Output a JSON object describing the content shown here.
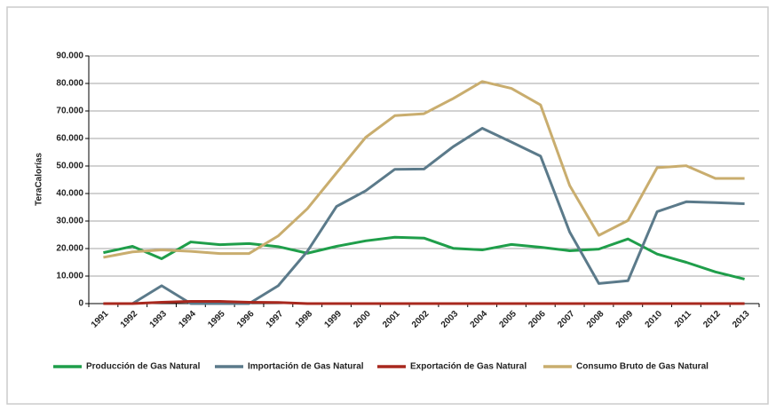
{
  "chart_data": {
    "type": "line",
    "y_label": "TeraCalorías",
    "categories": [
      "1991",
      "1992",
      "1993",
      "1994",
      "1995",
      "1996",
      "1997",
      "1998",
      "1999",
      "2000",
      "2001",
      "2002",
      "2003",
      "2004",
      "2005",
      "2006",
      "2007",
      "2008",
      "2009",
      "2010",
      "2011",
      "2012",
      "2013"
    ],
    "series": [
      {
        "name": "Producción de Gas Natural",
        "color": "#1f9e4a",
        "values": [
          18500,
          20800,
          16300,
          22400,
          21400,
          21800,
          20700,
          18300,
          20800,
          22800,
          24100,
          23800,
          20100,
          19500,
          21500,
          20500,
          19200,
          19800,
          23500,
          18000,
          15000,
          11500,
          8900
        ]
      },
      {
        "name": "Importación de Gas Natural",
        "color": "#5b7a8a",
        "values": [
          0,
          0,
          6500,
          0,
          0,
          0,
          6500,
          19000,
          35300,
          41000,
          48800,
          48900,
          57000,
          63700,
          58700,
          53600,
          26000,
          7300,
          8300,
          33400,
          37000,
          36700,
          36300
        ]
      },
      {
        "name": "Exportación de Gas Natural",
        "color": "#a8281e",
        "values": [
          0,
          0,
          500,
          800,
          800,
          500,
          400,
          0,
          0,
          0,
          0,
          0,
          0,
          0,
          0,
          0,
          0,
          0,
          0,
          0,
          0,
          0,
          0
        ]
      },
      {
        "name": "Consumo Bruto de Gas Natural",
        "color": "#c9ad6e",
        "values": [
          16800,
          18800,
          19500,
          19000,
          18200,
          18200,
          24600,
          34500,
          47500,
          60400,
          68300,
          69000,
          74500,
          80700,
          78200,
          72200,
          42900,
          24800,
          30200,
          49400,
          50100,
          45500,
          45500
        ]
      }
    ],
    "ylim": [
      0,
      90000
    ],
    "yticks": [
      0,
      {
        "value": 10000,
        "label": "10.000"
      },
      {
        "value": 20000,
        "label": "20.000"
      },
      {
        "value": 30000,
        "label": "30.000"
      },
      {
        "value": 40000,
        "label": "40.000"
      },
      {
        "value": 50000,
        "label": "50.000"
      },
      {
        "value": 60000,
        "label": "60.000"
      },
      {
        "value": 70000,
        "label": "70.000"
      },
      {
        "value": 80000,
        "label": "80.000"
      },
      {
        "value": 90000,
        "label": "90.000"
      }
    ],
    "grid": true
  }
}
